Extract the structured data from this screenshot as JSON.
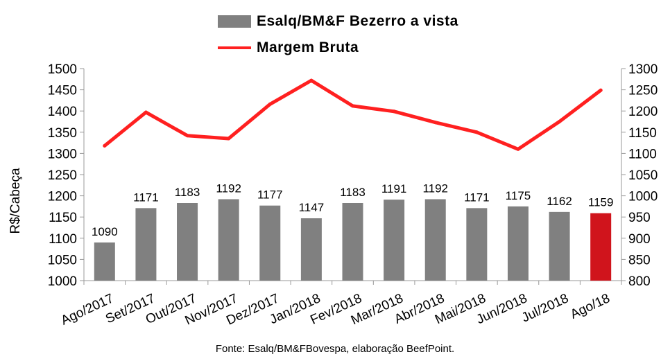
{
  "legend": {
    "bar_label": "Esalq/BM&F Bezerro a vista",
    "line_label": "Margem Bruta"
  },
  "footer": "Fonte: Esalq/BM&FBovespa, elaboração BeefPoint.",
  "colors": {
    "bar": "#808080",
    "bar_highlight": "#d0141c",
    "line": "#ff2020",
    "axis": "#999999"
  },
  "chart_data": {
    "type": "bar",
    "categories": [
      "Ago/2017",
      "Set/2017",
      "Out/2017",
      "Nov/2017",
      "Dez/2017",
      "Jan/2018",
      "Fev/2018",
      "Mar/2018",
      "Abr/2018",
      "Mai/2018",
      "Jun/2018",
      "Jul/2018",
      "Ago/18"
    ],
    "series": [
      {
        "name": "Esalq/BM&F Bezerro a vista",
        "type": "bar",
        "axis": "left",
        "values": [
          1090,
          1171,
          1183,
          1192,
          1177,
          1147,
          1183,
          1191,
          1192,
          1171,
          1175,
          1162,
          1159
        ],
        "highlight_index": 12
      },
      {
        "name": "Margem Bruta",
        "type": "line",
        "axis": "right",
        "values": [
          1118,
          1197,
          1142,
          1135,
          1216,
          1272,
          1212,
          1199,
          1173,
          1150,
          1110,
          1175,
          1249
        ]
      }
    ],
    "ylabel": "R$/Cabeça",
    "ylim": [
      1000,
      1500
    ],
    "yticks": [
      1000,
      1050,
      1100,
      1150,
      1200,
      1250,
      1300,
      1350,
      1400,
      1450,
      1500
    ],
    "y2lim": [
      800,
      1300
    ],
    "y2ticks": [
      800,
      850,
      900,
      950,
      1000,
      1050,
      1100,
      1150,
      1200,
      1250,
      1300
    ],
    "grid": false,
    "legend_position": "top-center"
  }
}
